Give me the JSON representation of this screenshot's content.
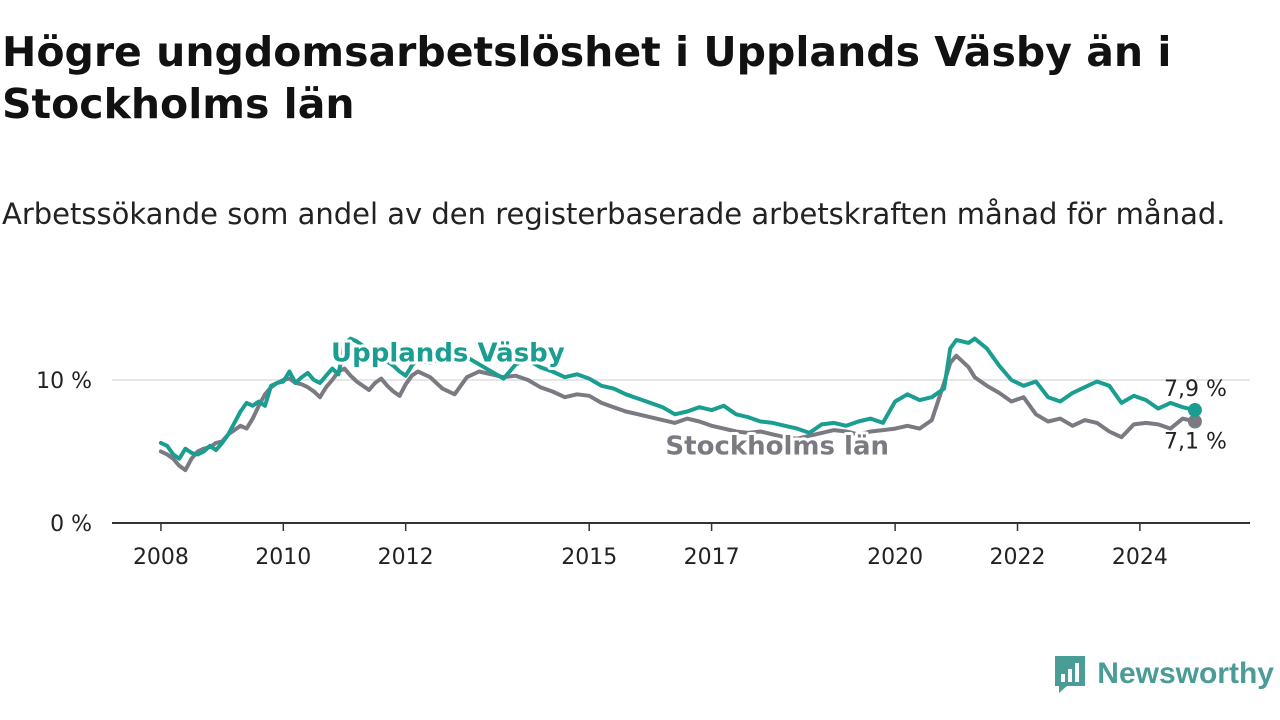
{
  "header": {
    "title": "Högre ungdomsarbetslöshet i Upplands Väsby än i Stockholms län",
    "subtitle": "Arbetssökande som andel av den registerbaserade arbetskraften månad för månad."
  },
  "brand": {
    "name": "Newsworthy",
    "icon": "newsworthy-logo-icon",
    "color": "#4a9d96"
  },
  "chart_data": {
    "type": "line",
    "title": "Högre ungdomsarbetslöshet i Upplands Väsby än i Stockholms län",
    "subtitle": "Arbetssökande som andel av den registerbaserade arbetskraften månad för månad.",
    "xlabel": "",
    "ylabel": "",
    "x_ticks": [
      "2008",
      "2010",
      "2012",
      "2015",
      "2017",
      "2020",
      "2022",
      "2024"
    ],
    "x_tick_values": [
      2008,
      2010,
      2012,
      2015,
      2017,
      2020,
      2022,
      2024
    ],
    "y_ticks": [
      0,
      10
    ],
    "y_tick_labels": [
      "0 %",
      "10 %"
    ],
    "xlim": [
      2007.2,
      2025.8
    ],
    "ylim": [
      0,
      13.5
    ],
    "grid": true,
    "legend": "inline labels",
    "series": [
      {
        "name": "Upplands Väsby",
        "color": "#1a9e91",
        "end_label": "7,9 %",
        "points": [
          [
            2008.0,
            5.6
          ],
          [
            2008.1,
            5.4
          ],
          [
            2008.2,
            4.8
          ],
          [
            2008.3,
            4.5
          ],
          [
            2008.4,
            5.2
          ],
          [
            2008.5,
            4.9
          ],
          [
            2008.6,
            4.8
          ],
          [
            2008.7,
            5.0
          ],
          [
            2008.8,
            5.4
          ],
          [
            2008.9,
            5.1
          ],
          [
            2009.0,
            5.6
          ],
          [
            2009.1,
            6.2
          ],
          [
            2009.2,
            7.0
          ],
          [
            2009.3,
            7.8
          ],
          [
            2009.4,
            8.4
          ],
          [
            2009.5,
            8.2
          ],
          [
            2009.6,
            8.5
          ],
          [
            2009.7,
            8.2
          ],
          [
            2009.8,
            9.6
          ],
          [
            2009.9,
            9.8
          ],
          [
            2010.0,
            9.9
          ],
          [
            2010.1,
            10.6
          ],
          [
            2010.2,
            9.8
          ],
          [
            2010.3,
            10.2
          ],
          [
            2010.4,
            10.5
          ],
          [
            2010.5,
            10.0
          ],
          [
            2010.6,
            9.8
          ],
          [
            2010.7,
            10.3
          ],
          [
            2010.8,
            10.8
          ],
          [
            2010.9,
            10.4
          ],
          [
            2011.0,
            12.5
          ],
          [
            2011.1,
            12.9
          ],
          [
            2011.2,
            12.7
          ],
          [
            2011.3,
            12.4
          ],
          [
            2011.4,
            12.2
          ],
          [
            2011.5,
            12.0
          ],
          [
            2011.6,
            11.5
          ],
          [
            2011.7,
            11.3
          ],
          [
            2011.8,
            11.0
          ],
          [
            2011.9,
            10.6
          ],
          [
            2012.0,
            10.3
          ],
          [
            2012.1,
            11.0
          ],
          [
            2012.2,
            11.5
          ],
          [
            2012.3,
            11.3
          ],
          [
            2012.4,
            11.2
          ],
          [
            2012.6,
            11.6
          ],
          [
            2012.8,
            12.1
          ],
          [
            2013.0,
            11.6
          ],
          [
            2013.2,
            11.1
          ],
          [
            2013.4,
            10.6
          ],
          [
            2013.6,
            10.1
          ],
          [
            2013.8,
            11.1
          ],
          [
            2014.0,
            11.4
          ],
          [
            2014.2,
            10.9
          ],
          [
            2014.4,
            10.6
          ],
          [
            2014.6,
            10.2
          ],
          [
            2014.8,
            10.4
          ],
          [
            2015.0,
            10.1
          ],
          [
            2015.2,
            9.6
          ],
          [
            2015.4,
            9.4
          ],
          [
            2015.6,
            9.0
          ],
          [
            2015.8,
            8.7
          ],
          [
            2016.0,
            8.4
          ],
          [
            2016.2,
            8.1
          ],
          [
            2016.4,
            7.6
          ],
          [
            2016.6,
            7.8
          ],
          [
            2016.8,
            8.1
          ],
          [
            2017.0,
            7.9
          ],
          [
            2017.2,
            8.2
          ],
          [
            2017.4,
            7.6
          ],
          [
            2017.6,
            7.4
          ],
          [
            2017.8,
            7.1
          ],
          [
            2018.0,
            7.0
          ],
          [
            2018.2,
            6.8
          ],
          [
            2018.4,
            6.6
          ],
          [
            2018.6,
            6.3
          ],
          [
            2018.8,
            6.9
          ],
          [
            2019.0,
            7.0
          ],
          [
            2019.2,
            6.8
          ],
          [
            2019.4,
            7.1
          ],
          [
            2019.6,
            7.3
          ],
          [
            2019.8,
            7.0
          ],
          [
            2020.0,
            8.5
          ],
          [
            2020.2,
            9.0
          ],
          [
            2020.4,
            8.6
          ],
          [
            2020.6,
            8.8
          ],
          [
            2020.8,
            9.4
          ],
          [
            2020.9,
            12.2
          ],
          [
            2021.0,
            12.8
          ],
          [
            2021.2,
            12.6
          ],
          [
            2021.3,
            12.9
          ],
          [
            2021.5,
            12.2
          ],
          [
            2021.7,
            11.0
          ],
          [
            2021.9,
            10.0
          ],
          [
            2022.1,
            9.6
          ],
          [
            2022.3,
            9.9
          ],
          [
            2022.5,
            8.8
          ],
          [
            2022.7,
            8.5
          ],
          [
            2022.9,
            9.1
          ],
          [
            2023.1,
            9.5
          ],
          [
            2023.3,
            9.9
          ],
          [
            2023.5,
            9.6
          ],
          [
            2023.7,
            8.4
          ],
          [
            2023.9,
            8.9
          ],
          [
            2024.1,
            8.6
          ],
          [
            2024.3,
            8.0
          ],
          [
            2024.5,
            8.4
          ],
          [
            2024.7,
            8.1
          ],
          [
            2024.9,
            7.9
          ]
        ]
      },
      {
        "name": "Stockholms län",
        "color": "#7a7a82",
        "end_label": "7,1 %",
        "points": [
          [
            2008.0,
            5.0
          ],
          [
            2008.1,
            4.8
          ],
          [
            2008.2,
            4.5
          ],
          [
            2008.3,
            4.0
          ],
          [
            2008.4,
            3.7
          ],
          [
            2008.5,
            4.5
          ],
          [
            2008.6,
            5.0
          ],
          [
            2008.7,
            5.2
          ],
          [
            2008.8,
            5.3
          ],
          [
            2008.9,
            5.6
          ],
          [
            2009.0,
            5.7
          ],
          [
            2009.1,
            6.2
          ],
          [
            2009.2,
            6.5
          ],
          [
            2009.3,
            6.8
          ],
          [
            2009.4,
            6.6
          ],
          [
            2009.5,
            7.3
          ],
          [
            2009.6,
            8.2
          ],
          [
            2009.7,
            9.0
          ],
          [
            2009.8,
            9.5
          ],
          [
            2009.9,
            9.8
          ],
          [
            2010.0,
            10.0
          ],
          [
            2010.1,
            10.1
          ],
          [
            2010.2,
            9.8
          ],
          [
            2010.3,
            9.7
          ],
          [
            2010.4,
            9.5
          ],
          [
            2010.5,
            9.2
          ],
          [
            2010.6,
            8.8
          ],
          [
            2010.7,
            9.5
          ],
          [
            2010.8,
            10.0
          ],
          [
            2010.9,
            10.6
          ],
          [
            2011.0,
            10.8
          ],
          [
            2011.1,
            10.3
          ],
          [
            2011.2,
            9.9
          ],
          [
            2011.3,
            9.6
          ],
          [
            2011.4,
            9.3
          ],
          [
            2011.5,
            9.8
          ],
          [
            2011.6,
            10.1
          ],
          [
            2011.7,
            9.6
          ],
          [
            2011.8,
            9.2
          ],
          [
            2011.9,
            8.9
          ],
          [
            2012.0,
            9.7
          ],
          [
            2012.1,
            10.3
          ],
          [
            2012.2,
            10.6
          ],
          [
            2012.3,
            10.4
          ],
          [
            2012.4,
            10.2
          ],
          [
            2012.6,
            9.4
          ],
          [
            2012.8,
            9.0
          ],
          [
            2013.0,
            10.2
          ],
          [
            2013.2,
            10.6
          ],
          [
            2013.4,
            10.4
          ],
          [
            2013.6,
            10.2
          ],
          [
            2013.8,
            10.3
          ],
          [
            2014.0,
            10.0
          ],
          [
            2014.2,
            9.5
          ],
          [
            2014.4,
            9.2
          ],
          [
            2014.6,
            8.8
          ],
          [
            2014.8,
            9.0
          ],
          [
            2015.0,
            8.9
          ],
          [
            2015.2,
            8.4
          ],
          [
            2015.4,
            8.1
          ],
          [
            2015.6,
            7.8
          ],
          [
            2015.8,
            7.6
          ],
          [
            2016.0,
            7.4
          ],
          [
            2016.2,
            7.2
          ],
          [
            2016.4,
            7.0
          ],
          [
            2016.6,
            7.3
          ],
          [
            2016.8,
            7.1
          ],
          [
            2017.0,
            6.8
          ],
          [
            2017.2,
            6.6
          ],
          [
            2017.4,
            6.4
          ],
          [
            2017.6,
            6.3
          ],
          [
            2017.8,
            6.4
          ],
          [
            2018.0,
            6.2
          ],
          [
            2018.2,
            6.0
          ],
          [
            2018.4,
            5.9
          ],
          [
            2018.6,
            6.1
          ],
          [
            2018.8,
            6.3
          ],
          [
            2019.0,
            6.5
          ],
          [
            2019.2,
            6.4
          ],
          [
            2019.4,
            6.2
          ],
          [
            2019.6,
            6.4
          ],
          [
            2019.8,
            6.5
          ],
          [
            2020.0,
            6.6
          ],
          [
            2020.2,
            6.8
          ],
          [
            2020.4,
            6.6
          ],
          [
            2020.6,
            7.2
          ],
          [
            2020.8,
            9.8
          ],
          [
            2020.9,
            11.2
          ],
          [
            2021.0,
            11.7
          ],
          [
            2021.2,
            10.9
          ],
          [
            2021.3,
            10.2
          ],
          [
            2021.5,
            9.6
          ],
          [
            2021.7,
            9.1
          ],
          [
            2021.9,
            8.5
          ],
          [
            2022.1,
            8.8
          ],
          [
            2022.3,
            7.6
          ],
          [
            2022.5,
            7.1
          ],
          [
            2022.7,
            7.3
          ],
          [
            2022.9,
            6.8
          ],
          [
            2023.1,
            7.2
          ],
          [
            2023.3,
            7.0
          ],
          [
            2023.5,
            6.4
          ],
          [
            2023.7,
            6.0
          ],
          [
            2023.9,
            6.9
          ],
          [
            2024.1,
            7.0
          ],
          [
            2024.3,
            6.9
          ],
          [
            2024.5,
            6.6
          ],
          [
            2024.7,
            7.3
          ],
          [
            2024.9,
            7.1
          ]
        ]
      }
    ]
  }
}
